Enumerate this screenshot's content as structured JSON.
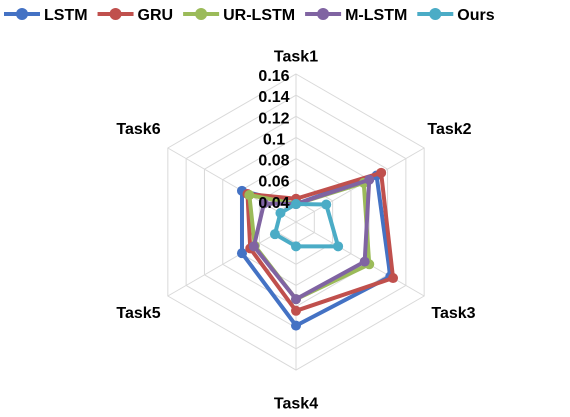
{
  "chart_data": {
    "type": "radar",
    "title": "",
    "categories": [
      "Task1",
      "Task2",
      "Task3",
      "Task4",
      "Task5",
      "Task6"
    ],
    "rlim": [
      0.02,
      0.16
    ],
    "ticks": [
      0.04,
      0.06,
      0.08,
      0.1,
      0.12,
      0.14,
      0.16
    ],
    "tick_labels": [
      "0.04",
      "0.06",
      "0.08",
      "0.1",
      "0.12",
      "0.14",
      "0.16"
    ],
    "grid": true,
    "legend_position": "top",
    "series": [
      {
        "name": "LSTM",
        "color": "#4472C4",
        "values": [
          0.037,
          0.108,
          0.123,
          0.118,
          0.079,
          0.079
        ]
      },
      {
        "name": "GRU",
        "color": "#C0504D",
        "values": [
          0.042,
          0.113,
          0.126,
          0.104,
          0.07,
          0.073
        ]
      },
      {
        "name": "UR-LSTM",
        "color": "#9BBB59",
        "values": [
          0.037,
          0.094,
          0.1,
          0.093,
          0.065,
          0.071
        ]
      },
      {
        "name": "M-LSTM",
        "color": "#8064A2",
        "values": [
          0.037,
          0.1,
          0.095,
          0.093,
          0.066,
          0.055
        ]
      },
      {
        "name": "Ours",
        "color": "#4BACC6",
        "values": [
          0.037,
          0.053,
          0.066,
          0.043,
          0.043,
          0.037
        ]
      }
    ]
  }
}
